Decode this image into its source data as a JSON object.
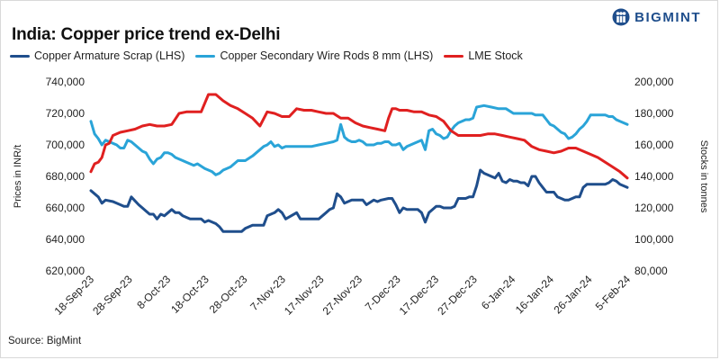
{
  "header": {
    "title": "India: Copper price trend ex-Delhi",
    "brand": "BIGMINT",
    "brand_color": "#1f4e8c"
  },
  "footer": {
    "source": "Source: BigMint"
  },
  "chart_data": {
    "type": "line",
    "title": "India: Copper price trend ex-Delhi",
    "xlabel": "",
    "ylabel_left": "Prices in INR/t",
    "ylabel_right": "Stocks in tonnes",
    "ylim_left": [
      620000,
      740000
    ],
    "ylim_right": [
      80000,
      200000
    ],
    "yticks_left": [
      "620,000",
      "640,000",
      "660,000",
      "680,000",
      "700,000",
      "720,000",
      "740,000"
    ],
    "yticks_right": [
      "80,000",
      "100,000",
      "120,000",
      "140,000",
      "160,000",
      "180,000",
      "200,000"
    ],
    "x_ticks": [
      "18-Sep-23",
      "28-Sep-23",
      "8-Oct-23",
      "18-Oct-23",
      "28-Oct-23",
      "7-Nov-23",
      "17-Nov-23",
      "27-Nov-23",
      "7-Dec-23",
      "17-Dec-23",
      "27-Dec-23",
      "6-Jan-24",
      "16-Jan-24",
      "26-Jan-24",
      "5-Feb-24"
    ],
    "x_range_days": [
      0,
      140
    ],
    "grid": false,
    "series": [
      {
        "name": "Copper Armature Scrap (LHS)",
        "axis": "left",
        "color": "#1f4e8c",
        "x": [
          0,
          1,
          2,
          3,
          4,
          6,
          8,
          9,
          10,
          11,
          13,
          14,
          15,
          16,
          17,
          18,
          19,
          20,
          22,
          23,
          24,
          25,
          26,
          27,
          28,
          30,
          31,
          32,
          34,
          35,
          36,
          40,
          41,
          42,
          44,
          45,
          47,
          48,
          49,
          50,
          51,
          52,
          53,
          56,
          57,
          58,
          59,
          60,
          61,
          62,
          63,
          64,
          65,
          66,
          67,
          68,
          69,
          71,
          72,
          73,
          74,
          75,
          77,
          78,
          79,
          81,
          82,
          83,
          84,
          85,
          86,
          87,
          88,
          89,
          90,
          91,
          92,
          94,
          95,
          96,
          98,
          99,
          100,
          101,
          102,
          103,
          104,
          105,
          106,
          107,
          108,
          110,
          111,
          112,
          113,
          114,
          115,
          116,
          117,
          118,
          119,
          120,
          121,
          122,
          123,
          124,
          126,
          127,
          128,
          129,
          130,
          131,
          132,
          133,
          134,
          135,
          136,
          137,
          138,
          139
        ],
        "values": [
          671000,
          669000,
          667000,
          663000,
          665000,
          664000,
          662000,
          661000,
          661000,
          667000,
          662000,
          660000,
          658000,
          656000,
          656000,
          653000,
          656000,
          655000,
          659000,
          657000,
          657000,
          655000,
          654000,
          653000,
          653000,
          653000,
          651000,
          652000,
          650000,
          648000,
          645000,
          645000,
          645000,
          647000,
          649000,
          649000,
          649000,
          655000,
          656000,
          657000,
          659000,
          657000,
          653000,
          657000,
          653000,
          653000,
          653000,
          653000,
          653000,
          653000,
          655000,
          657000,
          659000,
          660000,
          669000,
          667000,
          663000,
          665000,
          665000,
          665000,
          665000,
          662000,
          665000,
          664000,
          665000,
          666000,
          666000,
          662000,
          657000,
          660000,
          659000,
          659000,
          659000,
          659000,
          657000,
          651000,
          657000,
          661000,
          661000,
          660000,
          660000,
          661000,
          666000,
          666000,
          666000,
          667000,
          667000,
          674000,
          684000,
          682000,
          681000,
          679000,
          682000,
          677000,
          676000,
          678000,
          677000,
          677000,
          676000,
          676000,
          674000,
          680000,
          680000,
          676000,
          673000,
          670000,
          670000,
          667000,
          666000,
          665000,
          665000,
          666000,
          667000,
          667000,
          673000,
          675000,
          675000,
          675000,
          675000,
          675000
        ],
        "extra_x": [
          140,
          141,
          142,
          143,
          144,
          145,
          146
        ],
        "extra_values": [
          675000,
          676000,
          678000,
          677000,
          675000,
          674000,
          673000
        ]
      },
      {
        "name": "Copper Secondary Wire Rods 8 mm (LHS)",
        "axis": "left",
        "color": "#2aa4d8",
        "x": [
          0,
          1,
          2,
          3,
          4,
          5,
          6,
          7,
          8,
          9,
          10,
          11,
          12,
          13,
          14,
          15,
          16,
          17,
          18,
          19,
          20,
          21,
          22,
          23,
          24,
          25,
          26,
          27,
          28,
          29,
          31,
          33,
          34,
          35,
          36,
          38,
          40,
          42,
          44,
          46,
          47,
          48,
          49,
          50,
          51,
          52,
          53,
          54,
          55,
          56,
          57,
          58,
          59,
          60,
          62,
          64,
          66,
          67,
          68,
          69,
          70,
          71,
          72,
          73,
          74,
          75,
          76,
          77,
          78,
          79,
          80,
          81,
          82,
          83,
          84,
          85,
          86,
          87,
          88,
          89,
          90,
          91,
          92,
          93,
          94,
          95,
          96,
          97,
          98,
          99,
          100,
          101,
          102,
          103,
          104,
          105,
          107,
          109,
          111,
          113,
          115,
          116,
          117,
          118,
          119,
          120,
          121,
          122,
          123,
          124,
          125,
          126,
          128,
          129,
          130,
          131,
          132,
          133,
          134,
          135,
          136,
          137,
          138,
          139,
          140,
          141,
          142,
          143,
          144,
          145,
          146
        ],
        "values": [
          715000,
          707000,
          704000,
          700000,
          703000,
          702000,
          701000,
          700000,
          698000,
          698000,
          703000,
          702000,
          700000,
          698000,
          696000,
          695000,
          691000,
          688000,
          691000,
          692000,
          695000,
          695000,
          694000,
          692000,
          691000,
          690000,
          689000,
          688000,
          687000,
          688000,
          685000,
          683000,
          681000,
          682000,
          684000,
          686000,
          690000,
          690000,
          693000,
          697000,
          699000,
          700000,
          702000,
          699000,
          700000,
          698000,
          699000,
          699000,
          699000,
          699000,
          699000,
          699000,
          699000,
          699000,
          700000,
          701000,
          702000,
          703000,
          713000,
          705000,
          703000,
          702000,
          702000,
          703000,
          702000,
          700000,
          700000,
          700000,
          701000,
          701000,
          702000,
          702000,
          700000,
          700000,
          701000,
          697000,
          699000,
          700000,
          701000,
          702000,
          703000,
          697000,
          709000,
          710000,
          707000,
          706000,
          704000,
          705000,
          709000,
          712000,
          714000,
          715000,
          716000,
          716000,
          717000,
          724000,
          725000,
          724000,
          723000,
          723000,
          720000,
          720000,
          720000,
          720000,
          720000,
          720000,
          719000,
          719000,
          719000,
          716000,
          713000,
          712000,
          708000,
          707000,
          704000,
          705000,
          707000,
          710000,
          712000,
          715000,
          719000,
          719000,
          719000,
          719000,
          719000,
          718000,
          718000,
          716000,
          715000,
          714000,
          713000
        ],
        "extra_x": [],
        "extra_values": []
      },
      {
        "name": "LME Stock",
        "axis": "right",
        "color": "#e02020",
        "x": [
          0,
          1,
          2,
          3,
          4,
          5,
          6,
          7,
          8,
          10,
          12,
          14,
          16,
          18,
          20,
          22,
          24,
          26,
          28,
          29,
          30,
          32,
          34,
          36,
          38,
          40,
          42,
          44,
          46,
          48,
          50,
          52,
          54,
          56,
          58,
          60,
          62,
          64,
          66,
          68,
          70,
          72,
          74,
          76,
          78,
          80,
          81,
          82,
          83,
          84,
          86,
          88,
          90,
          92,
          94,
          96,
          98,
          100,
          102,
          104,
          106,
          108,
          110,
          112,
          114,
          116,
          118,
          120,
          122,
          124,
          126,
          128,
          130,
          132,
          134,
          136,
          138,
          140,
          142,
          144,
          146
        ],
        "values": [
          143000,
          148000,
          149000,
          152000,
          160000,
          161000,
          166000,
          167000,
          168000,
          169000,
          170000,
          172000,
          173000,
          172000,
          172000,
          173000,
          180000,
          181000,
          181000,
          181000,
          181000,
          192000,
          192000,
          188000,
          185000,
          183000,
          180000,
          177000,
          172000,
          181000,
          180000,
          178000,
          178000,
          183000,
          182000,
          182000,
          181000,
          180000,
          180000,
          177000,
          177000,
          174000,
          172000,
          171000,
          170000,
          169000,
          177000,
          183000,
          183000,
          182000,
          182000,
          181000,
          181000,
          179000,
          178000,
          175000,
          169000,
          166000,
          166000,
          166000,
          166000,
          167000,
          167000,
          166000,
          165000,
          164000,
          163000,
          159000,
          157000,
          156000,
          155000,
          156000,
          158000,
          158000,
          156000,
          154000,
          152000,
          149000,
          146000,
          143000,
          139000
        ]
      }
    ]
  }
}
